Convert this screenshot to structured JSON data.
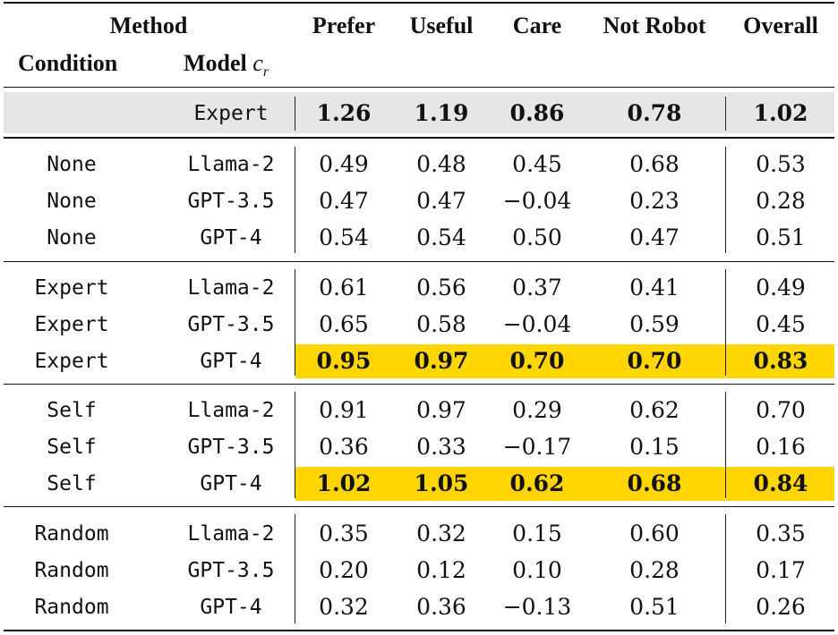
{
  "header": {
    "method": "Method",
    "condition": "Condition",
    "model": "Model",
    "model_symbol": "c",
    "model_subscript": "r",
    "columns": [
      "Prefer",
      "Useful",
      "Care",
      "Not Robot",
      "Overall"
    ]
  },
  "expert_row": {
    "model": "Expert",
    "values": [
      "1.26",
      "1.19",
      "0.86",
      "0.78",
      "1.02"
    ]
  },
  "rows": [
    {
      "condition": "None",
      "model": "Llama-2",
      "values": [
        "0.49",
        "0.48",
        "0.45",
        "0.68",
        "0.53"
      ],
      "highlight": false
    },
    {
      "condition": "None",
      "model": "GPT-3.5",
      "values": [
        "0.47",
        "0.47",
        "−0.04",
        "0.23",
        "0.28"
      ],
      "highlight": false
    },
    {
      "condition": "None",
      "model": "GPT-4",
      "values": [
        "0.54",
        "0.54",
        "0.50",
        "0.47",
        "0.51"
      ],
      "highlight": false
    },
    {
      "condition": "Expert",
      "model": "Llama-2",
      "values": [
        "0.61",
        "0.56",
        "0.37",
        "0.41",
        "0.49"
      ],
      "highlight": false
    },
    {
      "condition": "Expert",
      "model": "GPT-3.5",
      "values": [
        "0.65",
        "0.58",
        "−0.04",
        "0.59",
        "0.45"
      ],
      "highlight": false
    },
    {
      "condition": "Expert",
      "model": "GPT-4",
      "values": [
        "0.95",
        "0.97",
        "0.70",
        "0.70",
        "0.83"
      ],
      "highlight": true
    },
    {
      "condition": "Self",
      "model": "Llama-2",
      "values": [
        "0.91",
        "0.97",
        "0.29",
        "0.62",
        "0.70"
      ],
      "highlight": false
    },
    {
      "condition": "Self",
      "model": "GPT-3.5",
      "values": [
        "0.36",
        "0.33",
        "−0.17",
        "0.15",
        "0.16"
      ],
      "highlight": false
    },
    {
      "condition": "Self",
      "model": "GPT-4",
      "values": [
        "1.02",
        "1.05",
        "0.62",
        "0.68",
        "0.84"
      ],
      "highlight": true
    },
    {
      "condition": "Random",
      "model": "Llama-2",
      "values": [
        "0.35",
        "0.32",
        "0.15",
        "0.60",
        "0.35"
      ],
      "highlight": false
    },
    {
      "condition": "Random",
      "model": "GPT-3.5",
      "values": [
        "0.20",
        "0.12",
        "0.10",
        "0.28",
        "0.17"
      ],
      "highlight": false
    },
    {
      "condition": "Random",
      "model": "GPT-4",
      "values": [
        "0.32",
        "0.36",
        "−0.13",
        "0.51",
        "0.26"
      ],
      "highlight": false
    }
  ],
  "colors": {
    "expert_band": "#e6e6e6",
    "highlight": "#ffd500",
    "rule": "#111111"
  }
}
